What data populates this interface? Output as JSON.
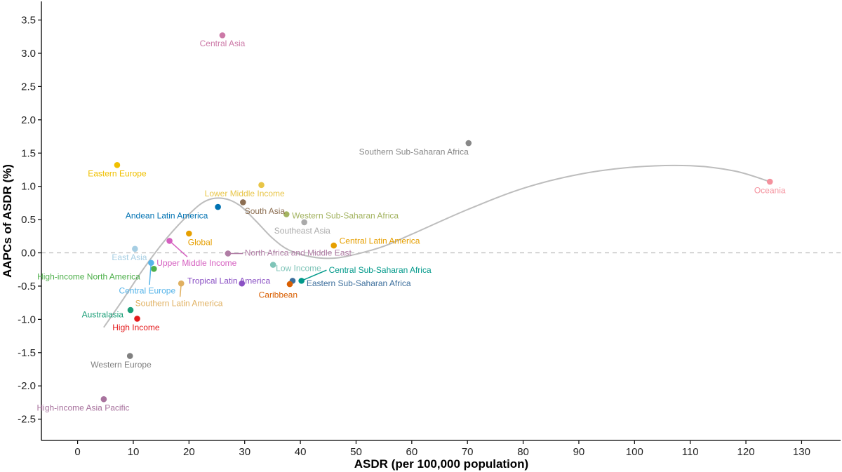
{
  "chart_data": {
    "type": "scatter",
    "title": "",
    "xlabel": "ASDR (per 100,000 population)",
    "ylabel": "AAPCs of ASDR (%)",
    "xlim": [
      -6.5,
      137
    ],
    "ylim": [
      -2.82,
      3.78
    ],
    "xticks": [
      0,
      10,
      20,
      30,
      40,
      50,
      60,
      70,
      80,
      90,
      100,
      110,
      120,
      130
    ],
    "yticks": [
      3.5,
      3.0,
      2.5,
      2.0,
      1.5,
      1.0,
      0.5,
      0.0,
      -0.5,
      -1.0,
      -1.5,
      -2.0,
      -2.5
    ],
    "ytick_labels": [
      "3.5",
      "3.0",
      "2.5",
      "2.0",
      "1.5",
      "1.0",
      "0.5",
      "0.0",
      "-0.5",
      "-1.0",
      "-1.5",
      "-2.0",
      "-2.5"
    ],
    "reference_line_y": 0,
    "smooth_curve": [
      [
        4.7,
        -1.12
      ],
      [
        8,
        -0.72
      ],
      [
        12,
        -0.22
      ],
      [
        16,
        0.22
      ],
      [
        20,
        0.58
      ],
      [
        23,
        0.78
      ],
      [
        26,
        0.82
      ],
      [
        29,
        0.72
      ],
      [
        32,
        0.48
      ],
      [
        35,
        0.22
      ],
      [
        38,
        0.04
      ],
      [
        42,
        -0.06
      ],
      [
        46,
        -0.08
      ],
      [
        50,
        -0.02
      ],
      [
        55,
        0.1
      ],
      [
        60,
        0.28
      ],
      [
        70,
        0.65
      ],
      [
        80,
        0.97
      ],
      [
        90,
        1.18
      ],
      [
        100,
        1.29
      ],
      [
        110,
        1.31
      ],
      [
        118,
        1.23
      ],
      [
        124.3,
        1.07
      ]
    ],
    "points": [
      {
        "name": "Central Asia",
        "x": 26.0,
        "y": 3.27,
        "color": "#CC79A7",
        "label_x": 26.0,
        "label_y": 3.15,
        "anchor": "middle"
      },
      {
        "name": "Southern Sub-Saharan Africa",
        "x": 70.2,
        "y": 1.65,
        "color": "#888888",
        "label_x": 70.2,
        "label_y": 1.52,
        "anchor": "end"
      },
      {
        "name": "Eastern Europe",
        "x": 7.1,
        "y": 1.32,
        "color": "#F0C000",
        "label_x": 7.1,
        "label_y": 1.19,
        "anchor": "middle"
      },
      {
        "name": "Oceania",
        "x": 124.3,
        "y": 1.07,
        "color": "#F4919D",
        "label_x": 124.3,
        "label_y": 0.94,
        "anchor": "middle"
      },
      {
        "name": "Lower Middle Income",
        "x": 33.0,
        "y": 1.02,
        "color": "#E8C547",
        "label_x": 30.0,
        "label_y": 0.89,
        "anchor": "middle"
      },
      {
        "name": "South Asia",
        "x": 29.7,
        "y": 0.76,
        "color": "#8C6E52",
        "label_x": 30.0,
        "label_y": 0.63,
        "anchor": "start"
      },
      {
        "name": "Andean Latin America",
        "x": 25.2,
        "y": 0.69,
        "color": "#0072B2",
        "label_x": 16.0,
        "label_y": 0.56,
        "anchor": "middle"
      },
      {
        "name": "Western Sub-Saharan Africa",
        "x": 37.5,
        "y": 0.58,
        "color": "#A3B360",
        "label_x": 38.5,
        "label_y": 0.56,
        "anchor": "start"
      },
      {
        "name": "Southeast Asia",
        "x": 40.7,
        "y": 0.46,
        "color": "#AAAAAA",
        "label_x": 35.3,
        "label_y": 0.33,
        "anchor": "start"
      },
      {
        "name": "Global",
        "x": 20.0,
        "y": 0.29,
        "color": "#E69F00",
        "label_x": 19.8,
        "label_y": 0.16,
        "anchor": "start"
      },
      {
        "name": "Central Latin America",
        "x": 46.0,
        "y": 0.11,
        "color": "#E69F00",
        "label_x": 47.0,
        "label_y": 0.18,
        "anchor": "start"
      },
      {
        "name": "East Asia",
        "x": 10.3,
        "y": 0.06,
        "color": "#A6CEE3",
        "label_x": 9.3,
        "label_y": -0.07,
        "anchor": "middle"
      },
      {
        "name": "Upper Middle Income",
        "x": 16.5,
        "y": 0.18,
        "color": "#D55FC0",
        "label_x": 14.2,
        "label_y": -0.15,
        "anchor": "start",
        "leader": [
          19.7,
          -0.06
        ]
      },
      {
        "name": "North Africa and Middle East",
        "x": 27.0,
        "y": -0.01,
        "color": "#B07DA5",
        "label_x": 30.0,
        "label_y": 0.0,
        "anchor": "start",
        "leader": [
          29.7,
          -0.01
        ]
      },
      {
        "name": "Low Income",
        "x": 35.1,
        "y": -0.18,
        "color": "#7FC4B8",
        "label_x": 35.6,
        "label_y": -0.23,
        "anchor": "start"
      },
      {
        "name": "Central Sub-Saharan Africa",
        "x": 40.2,
        "y": -0.42,
        "color": "#00998A",
        "label_x": 45.1,
        "label_y": -0.26,
        "anchor": "start",
        "leader": [
          44.7,
          -0.26
        ]
      },
      {
        "name": "Eastern Sub-Saharan Africa",
        "x": 38.6,
        "y": -0.42,
        "color": "#3C6E9C",
        "label_x": 41.1,
        "label_y": -0.46,
        "anchor": "start"
      },
      {
        "name": "Tropical Latin America",
        "x": 29.5,
        "y": -0.46,
        "color": "#8A50C4",
        "label_x": 19.7,
        "label_y": -0.42,
        "anchor": "start"
      },
      {
        "name": "Caribbean",
        "x": 38.1,
        "y": -0.47,
        "color": "#D95F02",
        "label_x": 36.0,
        "label_y": -0.63,
        "anchor": "middle"
      },
      {
        "name": "High-income North America",
        "x": 13.7,
        "y": -0.24,
        "color": "#4DAF4A",
        "label_x": 2.0,
        "label_y": -0.36,
        "anchor": "middle"
      },
      {
        "name": "Central Europe",
        "x": 13.2,
        "y": -0.15,
        "color": "#56B4E9",
        "label_x": 12.5,
        "label_y": -0.57,
        "anchor": "middle",
        "leader": [
          12.9,
          -0.48
        ]
      },
      {
        "name": "Southern Latin America",
        "x": 18.6,
        "y": -0.46,
        "color": "#E0B060",
        "label_x": 18.2,
        "label_y": -0.76,
        "anchor": "middle",
        "leader": [
          18.4,
          -0.66
        ]
      },
      {
        "name": "Australasia",
        "x": 9.5,
        "y": -0.86,
        "color": "#1A9E77",
        "label_x": 4.5,
        "label_y": -0.93,
        "anchor": "middle"
      },
      {
        "name": "High Income",
        "x": 10.7,
        "y": -0.99,
        "color": "#E41A1C",
        "label_x": 10.5,
        "label_y": -1.12,
        "anchor": "middle"
      },
      {
        "name": "Western Europe",
        "x": 9.4,
        "y": -1.55,
        "color": "#808080",
        "label_x": 7.8,
        "label_y": -1.68,
        "anchor": "middle"
      },
      {
        "name": "High-income Asia Pacific",
        "x": 4.7,
        "y": -2.2,
        "color": "#A8739E",
        "label_x": 1.0,
        "label_y": -2.33,
        "anchor": "middle"
      }
    ]
  }
}
